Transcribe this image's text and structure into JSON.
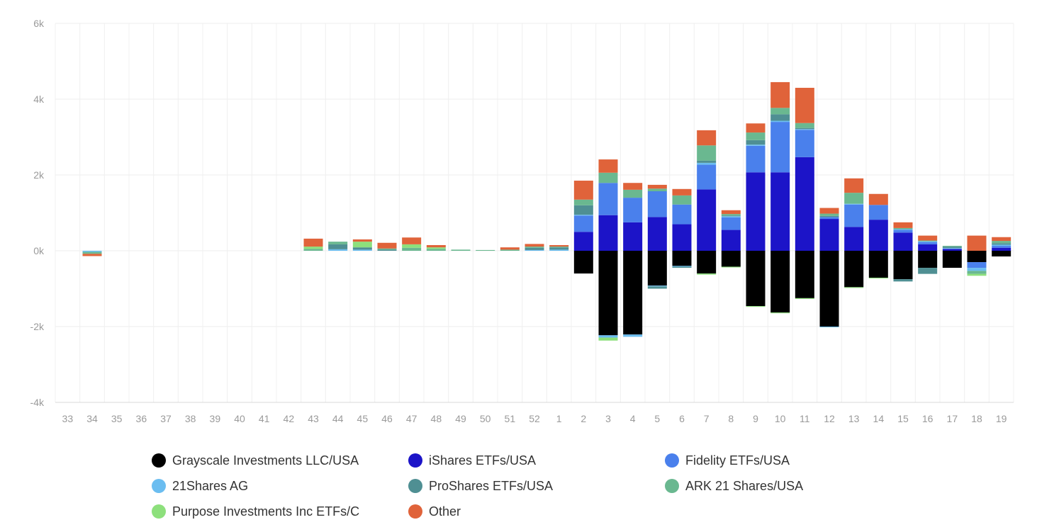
{
  "chart_data": {
    "type": "bar",
    "stacked": true,
    "categories": [
      "33",
      "34",
      "35",
      "36",
      "37",
      "38",
      "39",
      "40",
      "41",
      "42",
      "43",
      "44",
      "45",
      "46",
      "47",
      "48",
      "49",
      "50",
      "51",
      "52",
      "1",
      "2",
      "3",
      "4",
      "5",
      "6",
      "7",
      "8",
      "9",
      "10",
      "11",
      "12",
      "13",
      "14",
      "15",
      "16",
      "17",
      "18",
      "19"
    ],
    "y_ticks": [
      "6k",
      "4k",
      "2k",
      "0k",
      "-2k",
      "-4k"
    ],
    "ylim": [
      -4000,
      6000
    ],
    "grid": true,
    "legend_position": "bottom",
    "series": [
      {
        "name": "Grayscale Investments LLC/USA",
        "color": "#000000",
        "values": [
          0,
          0,
          0,
          0,
          0,
          0,
          0,
          0,
          0,
          0,
          0,
          0,
          0,
          0,
          0,
          0,
          0,
          0,
          0,
          0,
          0,
          -600,
          -2230,
          -2210,
          -920,
          -400,
          -600,
          -420,
          -1460,
          -1630,
          -1250,
          -2000,
          -960,
          -710,
          -750,
          -450,
          -450,
          -300,
          -150
        ]
      },
      {
        "name": "iShares ETFs/USA",
        "color": "#1c14c8",
        "values": [
          0,
          0,
          0,
          0,
          0,
          0,
          0,
          0,
          0,
          0,
          0,
          0,
          0,
          0,
          0,
          0,
          0,
          0,
          0,
          0,
          0,
          500,
          940,
          750,
          890,
          700,
          1620,
          550,
          2070,
          2070,
          2470,
          840,
          630,
          820,
          480,
          170,
          50,
          0,
          80
        ]
      },
      {
        "name": "Fidelity ETFs/USA",
        "color": "#4a80ec",
        "values": [
          0,
          0,
          0,
          0,
          0,
          0,
          0,
          0,
          0,
          0,
          0,
          0,
          0,
          0,
          0,
          0,
          0,
          0,
          0,
          0,
          0,
          430,
          850,
          650,
          680,
          520,
          650,
          330,
          700,
          1330,
          720,
          50,
          590,
          390,
          70,
          60,
          0,
          -150,
          50
        ]
      },
      {
        "name": "21Shares AG",
        "color": "#6bbdf0",
        "values": [
          0,
          -30,
          0,
          0,
          0,
          0,
          0,
          0,
          0,
          0,
          0,
          40,
          30,
          0,
          0,
          0,
          0,
          0,
          0,
          20,
          30,
          20,
          -60,
          -60,
          -20,
          -20,
          50,
          30,
          30,
          30,
          20,
          -20,
          20,
          0,
          20,
          20,
          20,
          -80,
          30
        ]
      },
      {
        "name": "ProShares ETFs/USA",
        "color": "#4f8f93",
        "values": [
          0,
          0,
          0,
          0,
          0,
          0,
          0,
          0,
          0,
          0,
          0,
          130,
          60,
          30,
          0,
          0,
          0,
          0,
          0,
          60,
          60,
          250,
          0,
          0,
          -60,
          -30,
          60,
          20,
          120,
          170,
          30,
          30,
          0,
          0,
          -60,
          -160,
          40,
          0,
          40
        ]
      },
      {
        "name": "ARK 21 Shares/USA",
        "color": "#6ab890",
        "values": [
          0,
          -50,
          0,
          0,
          0,
          0,
          0,
          0,
          0,
          0,
          50,
          70,
          0,
          30,
          80,
          50,
          30,
          20,
          30,
          30,
          20,
          150,
          270,
          210,
          70,
          240,
          400,
          40,
          200,
          170,
          130,
          60,
          290,
          0,
          30,
          20,
          20,
          -80,
          60
        ]
      },
      {
        "name": "Purpose Investments Inc ETFs/C",
        "color": "#8de07c",
        "values": [
          0,
          0,
          0,
          0,
          0,
          0,
          0,
          0,
          0,
          0,
          60,
          0,
          150,
          0,
          90,
          40,
          0,
          0,
          0,
          0,
          0,
          0,
          -80,
          0,
          0,
          0,
          -30,
          -20,
          -20,
          -20,
          -20,
          0,
          -20,
          -20,
          0,
          0,
          0,
          -50,
          0
        ]
      },
      {
        "name": "Other",
        "color": "#e0633a",
        "values": [
          0,
          -60,
          0,
          0,
          0,
          0,
          0,
          0,
          0,
          0,
          210,
          0,
          60,
          150,
          180,
          60,
          0,
          0,
          60,
          70,
          40,
          500,
          350,
          180,
          100,
          170,
          400,
          100,
          240,
          680,
          930,
          150,
          380,
          290,
          150,
          130,
          0,
          400,
          100
        ]
      }
    ]
  },
  "legend": {
    "items": [
      {
        "label": "Grayscale Investments LLC/USA",
        "color": "#000000"
      },
      {
        "label": "iShares ETFs/USA",
        "color": "#1c14c8"
      },
      {
        "label": "Fidelity ETFs/USA",
        "color": "#4a80ec"
      },
      {
        "label": "21Shares AG",
        "color": "#6bbdf0"
      },
      {
        "label": "ProShares ETFs/USA",
        "color": "#4f8f93"
      },
      {
        "label": "ARK 21 Shares/USA",
        "color": "#6ab890"
      },
      {
        "label": "Purpose Investments Inc ETFs/C",
        "color": "#8de07c"
      },
      {
        "label": "Other",
        "color": "#e0633a"
      }
    ]
  }
}
